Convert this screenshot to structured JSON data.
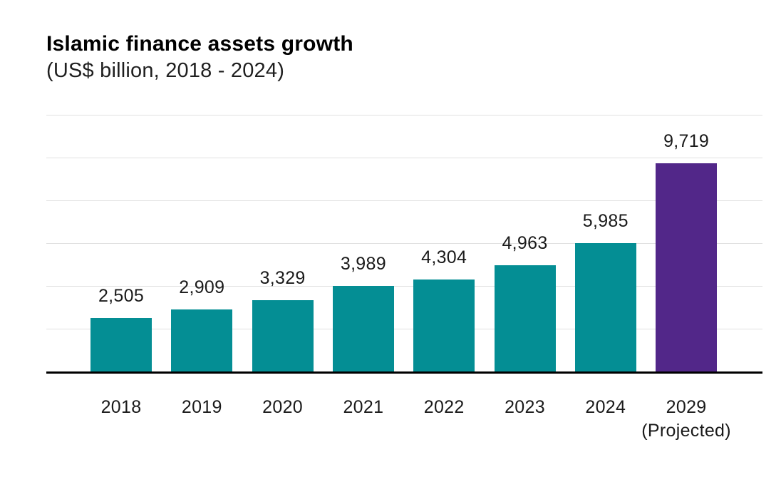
{
  "header": {
    "title": "Islamic finance assets growth",
    "subtitle": "(US$ billion, 2018 - 2024)"
  },
  "chart_data": {
    "type": "bar",
    "title": "Islamic finance assets growth",
    "subtitle": "(US$ billion, 2018 - 2024)",
    "categories": [
      "2018",
      "2019",
      "2020",
      "2021",
      "2022",
      "2023",
      "2024",
      "2029"
    ],
    "category_sublabels": [
      "",
      "",
      "",
      "",
      "",
      "",
      "",
      "(Projected)"
    ],
    "values": [
      2505,
      2909,
      3329,
      3989,
      4304,
      4963,
      5985,
      9719
    ],
    "value_labels": [
      "2,505",
      "2,909",
      "3,329",
      "3,989",
      "4,304",
      "4,963",
      "5,985",
      "9,719"
    ],
    "ylabel": "US$ billion",
    "ylim": [
      0,
      12000
    ],
    "gridline_step": 2000,
    "grid": true,
    "legend_position": "none",
    "colors": {
      "default_bar": "#048E94",
      "projected_bar": "#522789",
      "gridline": "#E1E1E1",
      "axis": "#000000",
      "label": "#1A1A1A"
    },
    "projected_index": 7
  }
}
